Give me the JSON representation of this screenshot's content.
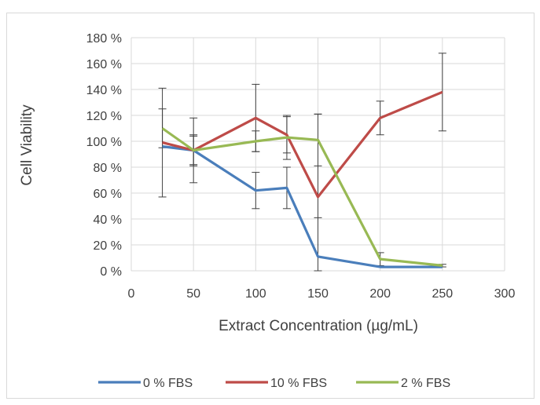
{
  "chart_data": {
    "type": "line",
    "title": "",
    "xlabel": "Extract Concentration (µg/mL)",
    "ylabel": "Cell Viability",
    "xlim": [
      0,
      300
    ],
    "ylim": [
      0,
      180
    ],
    "x_ticks": [
      0,
      50,
      100,
      150,
      200,
      250,
      300
    ],
    "x_tick_labels": [
      "0",
      "50",
      "100",
      "150",
      "200",
      "250",
      "300"
    ],
    "y_ticks": [
      0,
      20,
      40,
      60,
      80,
      100,
      120,
      140,
      160,
      180
    ],
    "y_tick_labels": [
      "0 %",
      "20 %",
      "40 %",
      "60 %",
      "80 %",
      "100 %",
      "120 %",
      "140 %",
      "160 %",
      "180 %"
    ],
    "grid": true,
    "legend_position": "bottom",
    "x": [
      25,
      50,
      100,
      125,
      150,
      200,
      250
    ],
    "series": [
      {
        "name": "0 % FBS",
        "color": "#4a7ebb",
        "values": [
          96,
          93,
          62,
          64,
          11,
          3,
          3
        ],
        "error": [
          null,
          12,
          14,
          16,
          30,
          0,
          0
        ]
      },
      {
        "name": "10 % FBS",
        "color": "#be4b48",
        "values": [
          99,
          93,
          118,
          105,
          57,
          118,
          138
        ],
        "error": [
          42,
          25,
          26,
          14,
          64,
          13,
          30
        ]
      },
      {
        "name": "2 % FBS",
        "color": "#98b954",
        "values": [
          110,
          93,
          100,
          103,
          101,
          9,
          4
        ],
        "error": [
          15,
          11,
          8,
          17,
          20,
          5,
          1
        ]
      }
    ]
  }
}
